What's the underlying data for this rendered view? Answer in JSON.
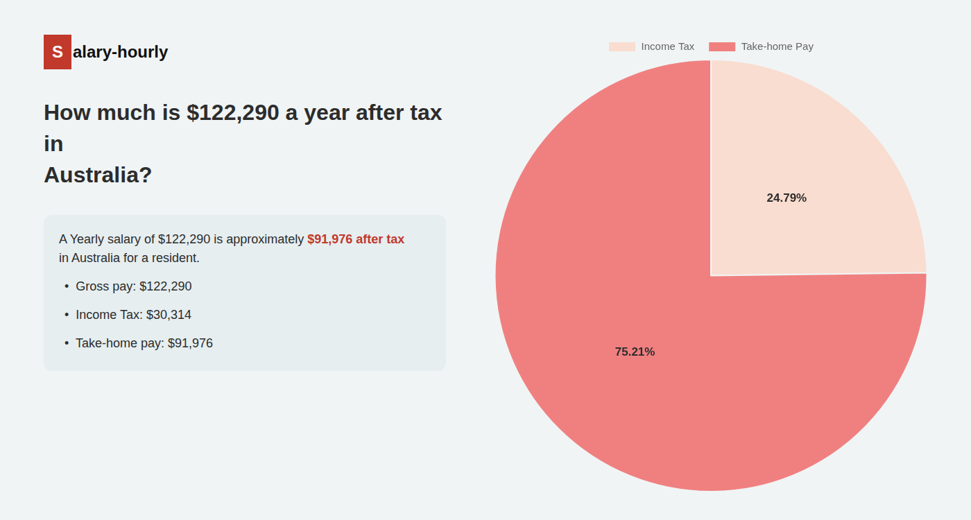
{
  "chart_data": {
    "type": "pie",
    "title": "How much is $122,290 a year after tax in\nAustralia?",
    "annotations": [
      {
        "text": "Salary-hourly",
        "color": "#c0392b"
      },
      {
        "text": "A Yearly salary of $122,290 is approximately "
      },
      {
        "text": "$91,976 after tax",
        "color": "#c0392b"
      },
      {
        "text": "in Australia for a resident."
      },
      {
        "text": "•  Gross pay: $122,290"
      },
      {
        "text": "•  Income Tax: $30,314"
      },
      {
        "text": "•  Take-home pay: $91,976"
      }
    ],
    "categories": [
      "Income Tax",
      "Take-home Pay"
    ],
    "values": [
      24.79,
      75.21
    ],
    "value_labels": [
      "24.79%",
      "75.21%"
    ],
    "colors": [
      "#f9ddd0",
      "#f08080"
    ],
    "data_labels": true,
    "legend": "top"
  }
}
